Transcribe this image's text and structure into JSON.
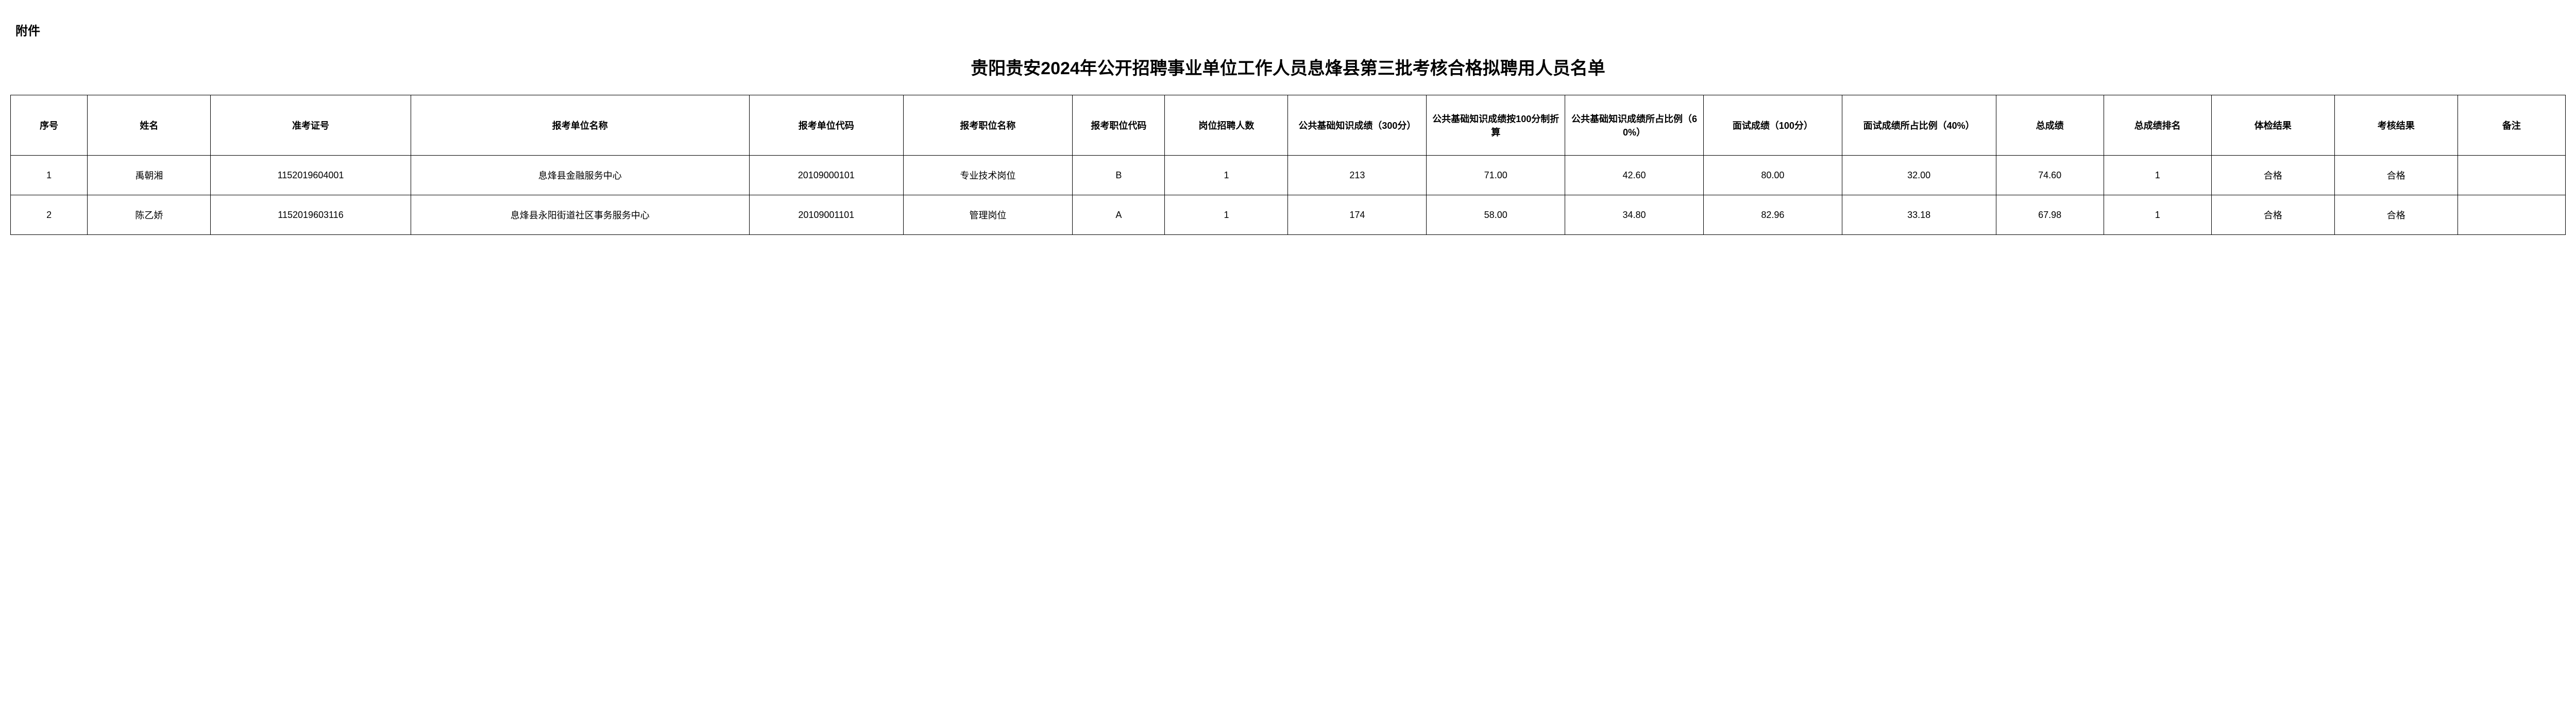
{
  "attachment_label": "附件",
  "title": "贵阳贵安2024年公开招聘事业单位工作人员息烽县第三批考核合格拟聘用人员名单",
  "columns": [
    "序号",
    "姓名",
    "准考证号",
    "报考单位名称",
    "报考单位代码",
    "报考职位名称",
    "报考职位代码",
    "岗位招聘人数",
    "公共基础知识成绩（300分）",
    "公共基础知识成绩按100分制折算",
    "公共基础知识成绩所占比例（60%）",
    "面试成绩（100分）",
    "面试成绩所占比例（40%）",
    "总成绩",
    "总成绩排名",
    "体检结果",
    "考核结果",
    "备注"
  ],
  "rows": [
    {
      "seq": "1",
      "name": "禹朝湘",
      "ticket": "1152019604001",
      "unit": "息烽县金融服务中心",
      "unitcode": "20109000101",
      "posname": "专业技术岗位",
      "poscode": "B",
      "recruit": "1",
      "score300": "213",
      "score100conv": "71.00",
      "ratio60": "42.60",
      "interview": "80.00",
      "ratio40": "32.00",
      "total": "74.60",
      "rank": "1",
      "physical": "合格",
      "assess": "合格",
      "remark": ""
    },
    {
      "seq": "2",
      "name": "陈乙娇",
      "ticket": "1152019603116",
      "unit": "息烽县永阳街道社区事务服务中心",
      "unitcode": "20109001101",
      "posname": "管理岗位",
      "poscode": "A",
      "recruit": "1",
      "score300": "174",
      "score100conv": "58.00",
      "ratio60": "34.80",
      "interview": "82.96",
      "ratio40": "33.18",
      "total": "67.98",
      "rank": "1",
      "physical": "合格",
      "assess": "合格",
      "remark": ""
    }
  ]
}
